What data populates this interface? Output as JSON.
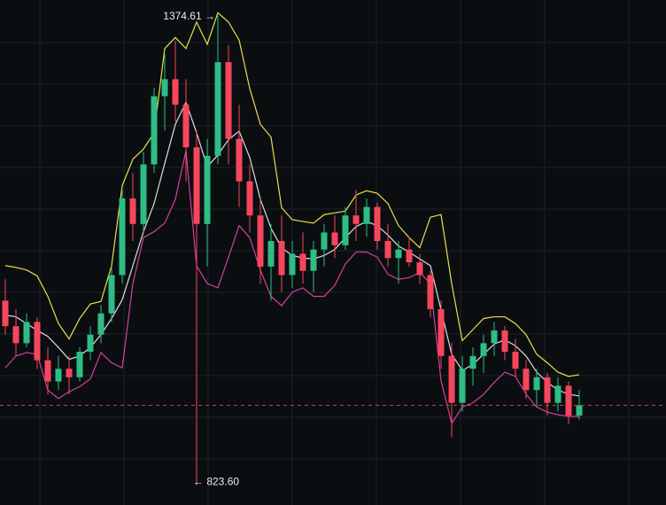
{
  "chart_data": {
    "type": "candlestick",
    "ylim": [
      800,
      1393
    ],
    "up_color": "#2ebd85",
    "down_color": "#f6465d",
    "open": [
      1040,
      1010,
      990,
      1015,
      970,
      945,
      960,
      950,
      980,
      1000,
      1025,
      1070,
      1160,
      1130,
      1200,
      1280,
      1300,
      1270,
      1220,
      1130,
      1210,
      1320,
      1230,
      1180,
      1140,
      1080,
      1110,
      1070,
      1095,
      1075,
      1100,
      1120,
      1105,
      1140,
      1130,
      1150,
      1110,
      1090,
      1100,
      1085,
      1070,
      1030,
      975,
      920,
      960,
      975,
      990,
      1005,
      980,
      960,
      935,
      950,
      920,
      940,
      905
    ],
    "high": [
      1065,
      1030,
      1025,
      1020,
      985,
      975,
      975,
      985,
      1010,
      1035,
      1080,
      1170,
      1190,
      1215,
      1290,
      1330,
      1345,
      1300,
      1240,
      1230,
      1374.61,
      1340,
      1270,
      1200,
      1160,
      1130,
      1140,
      1110,
      1120,
      1110,
      1130,
      1140,
      1150,
      1170,
      1160,
      1155,
      1130,
      1110,
      1115,
      1095,
      1075,
      1040,
      990,
      975,
      985,
      1000,
      1015,
      1010,
      995,
      970,
      960,
      955,
      950,
      945,
      935
    ],
    "low": [
      1000,
      975,
      985,
      960,
      930,
      935,
      930,
      945,
      970,
      990,
      1015,
      1060,
      1110,
      1120,
      1190,
      1240,
      1250,
      1180,
      823.6,
      1080,
      1200,
      1200,
      1150,
      1120,
      1060,
      1040,
      1050,
      1055,
      1060,
      1050,
      1080,
      1090,
      1100,
      1110,
      1115,
      1100,
      1080,
      1060,
      1080,
      1060,
      1020,
      960,
      880,
      910,
      940,
      955,
      975,
      970,
      950,
      925,
      915,
      905,
      910,
      895,
      900
    ],
    "close": [
      1010,
      990,
      1015,
      970,
      945,
      960,
      950,
      980,
      1000,
      1025,
      1070,
      1160,
      1130,
      1200,
      1280,
      1300,
      1270,
      1220,
      1130,
      1210,
      1320,
      1230,
      1180,
      1140,
      1080,
      1110,
      1070,
      1095,
      1075,
      1100,
      1120,
      1105,
      1140,
      1130,
      1150,
      1110,
      1090,
      1100,
      1085,
      1070,
      1030,
      975,
      920,
      960,
      975,
      990,
      1005,
      980,
      960,
      935,
      950,
      920,
      940,
      905,
      917
    ],
    "series": [
      {
        "color": "#e8e14a",
        "values": [
          1081,
          1079,
          1076,
          1069,
          1045,
          1013,
          995,
          1019,
          1036,
          1039,
          1081,
          1175,
          1206,
          1218,
          1237,
          1336,
          1349,
          1336,
          1367,
          1341,
          1378,
          1367,
          1346,
          1289,
          1247,
          1232,
          1149,
          1135,
          1133,
          1131,
          1141,
          1143,
          1145,
          1164,
          1169,
          1166,
          1154,
          1128,
          1114,
          1102,
          1138,
          1141,
          1060,
          993,
          1006,
          1019,
          1021,
          1021,
          1013,
          1000,
          977,
          967,
          956,
          951,
          953
        ]
      },
      {
        "color": "#dcdcdc",
        "values": [
          1023,
          1021,
          1013,
          1005,
          998,
          985,
          971,
          975,
          985,
          1000,
          1019,
          1041,
          1081,
          1121,
          1154,
          1201,
          1247,
          1273,
          1237,
          1197,
          1211,
          1229,
          1239,
          1208,
          1159,
          1125,
          1102,
          1093,
          1090,
          1089,
          1093,
          1100,
          1114,
          1127,
          1133,
          1128,
          1117,
          1104,
          1097,
          1089,
          1081,
          1029,
          977,
          958,
          965,
          977,
          989,
          994,
          987,
          975,
          956,
          944,
          935,
          930,
          928
        ]
      },
      {
        "color": "#d43f9e",
        "values": [
          961,
          975,
          979,
          977,
          935,
          925,
          933,
          939,
          948,
          979,
          967,
          961,
          1060,
          1114,
          1121,
          1131,
          1159,
          1216,
          1081,
          1060,
          1055,
          1091,
          1128,
          1114,
          1076,
          1045,
          1034,
          1050,
          1055,
          1045,
          1045,
          1058,
          1083,
          1097,
          1097,
          1091,
          1071,
          1065,
          1067,
          1073,
          1060,
          946,
          896,
          915,
          920,
          930,
          944,
          956,
          951,
          930,
          915,
          909,
          906,
          904,
          904
        ]
      }
    ],
    "last_line_color": "#f6465d",
    "high_label": "1374.61 →",
    "low_label": "← 823.60"
  }
}
